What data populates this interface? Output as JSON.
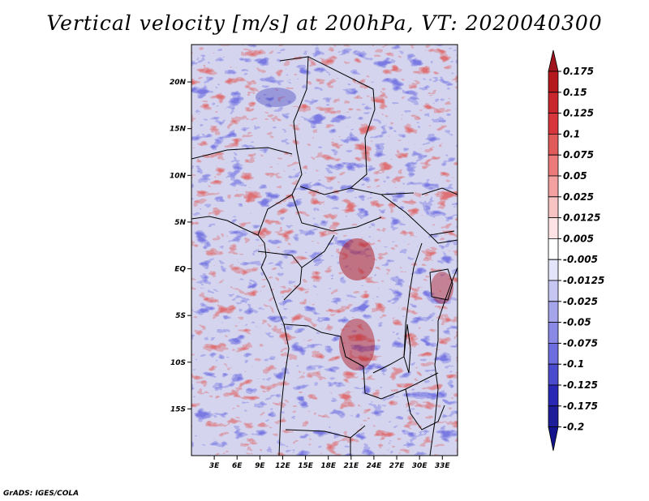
{
  "title": "Vertical velocity [m/s] at 200hPa, VT: 2020040300",
  "credit": "GrADS: IGES/COLA",
  "chart_data": {
    "type": "heatmap",
    "title": "Vertical velocity [m/s] at 200hPa, VT: 2020040300",
    "variable": "Vertical velocity",
    "units": "m/s",
    "level": "200hPa",
    "valid_time": "2020040300",
    "xlim": [
      0,
      35
    ],
    "ylim": [
      -20,
      24
    ],
    "x_ticks": [
      {
        "value": 3,
        "label": "3E"
      },
      {
        "value": 6,
        "label": "6E"
      },
      {
        "value": 9,
        "label": "9E"
      },
      {
        "value": 12,
        "label": "12E"
      },
      {
        "value": 15,
        "label": "15E"
      },
      {
        "value": 18,
        "label": "18E"
      },
      {
        "value": 21,
        "label": "21E"
      },
      {
        "value": 24,
        "label": "24E"
      },
      {
        "value": 27,
        "label": "27E"
      },
      {
        "value": 30,
        "label": "30E"
      },
      {
        "value": 33,
        "label": "33E"
      }
    ],
    "y_ticks": [
      {
        "value": 20,
        "label": "20N"
      },
      {
        "value": 15,
        "label": "15N"
      },
      {
        "value": 10,
        "label": "10N"
      },
      {
        "value": 5,
        "label": "5N"
      },
      {
        "value": 0,
        "label": "EQ"
      },
      {
        "value": -5,
        "label": "5S"
      },
      {
        "value": -10,
        "label": "10S"
      },
      {
        "value": -15,
        "label": "15S"
      }
    ],
    "colorbar": {
      "levels": [
        {
          "label": "0.175",
          "value": 0.175
        },
        {
          "label": "0.15",
          "value": 0.15
        },
        {
          "label": "0.125",
          "value": 0.125
        },
        {
          "label": "0.1",
          "value": 0.1
        },
        {
          "label": "0.075",
          "value": 0.075
        },
        {
          "label": "0.05",
          "value": 0.05
        },
        {
          "label": "0.025",
          "value": 0.025
        },
        {
          "label": "0.0125",
          "value": 0.0125
        },
        {
          "label": "0.005",
          "value": 0.005
        },
        {
          "label": "-0.005",
          "value": -0.005
        },
        {
          "label": "-0.0125",
          "value": -0.0125
        },
        {
          "label": "-0.025",
          "value": -0.025
        },
        {
          "label": "-0.05",
          "value": -0.05
        },
        {
          "label": "-0.075",
          "value": -0.075
        },
        {
          "label": "-0.1",
          "value": -0.1
        },
        {
          "label": "-0.125",
          "value": -0.125
        },
        {
          "label": "-0.175",
          "value": -0.175
        },
        {
          "label": "-0.2",
          "value": -0.2
        }
      ],
      "colors": [
        "#a0141e",
        "#b4191e",
        "#c8282d",
        "#d7373c",
        "#e15a5a",
        "#eb7b7b",
        "#f3a0a0",
        "#f8c3c3",
        "#fde3e3",
        "#ffffff",
        "#e4e4fa",
        "#c6c6f3",
        "#a5a5eb",
        "#8a8ae6",
        "#6d6de0",
        "#4b4bcd",
        "#2828b4",
        "#1e1e9b",
        "#14148c"
      ]
    }
  }
}
